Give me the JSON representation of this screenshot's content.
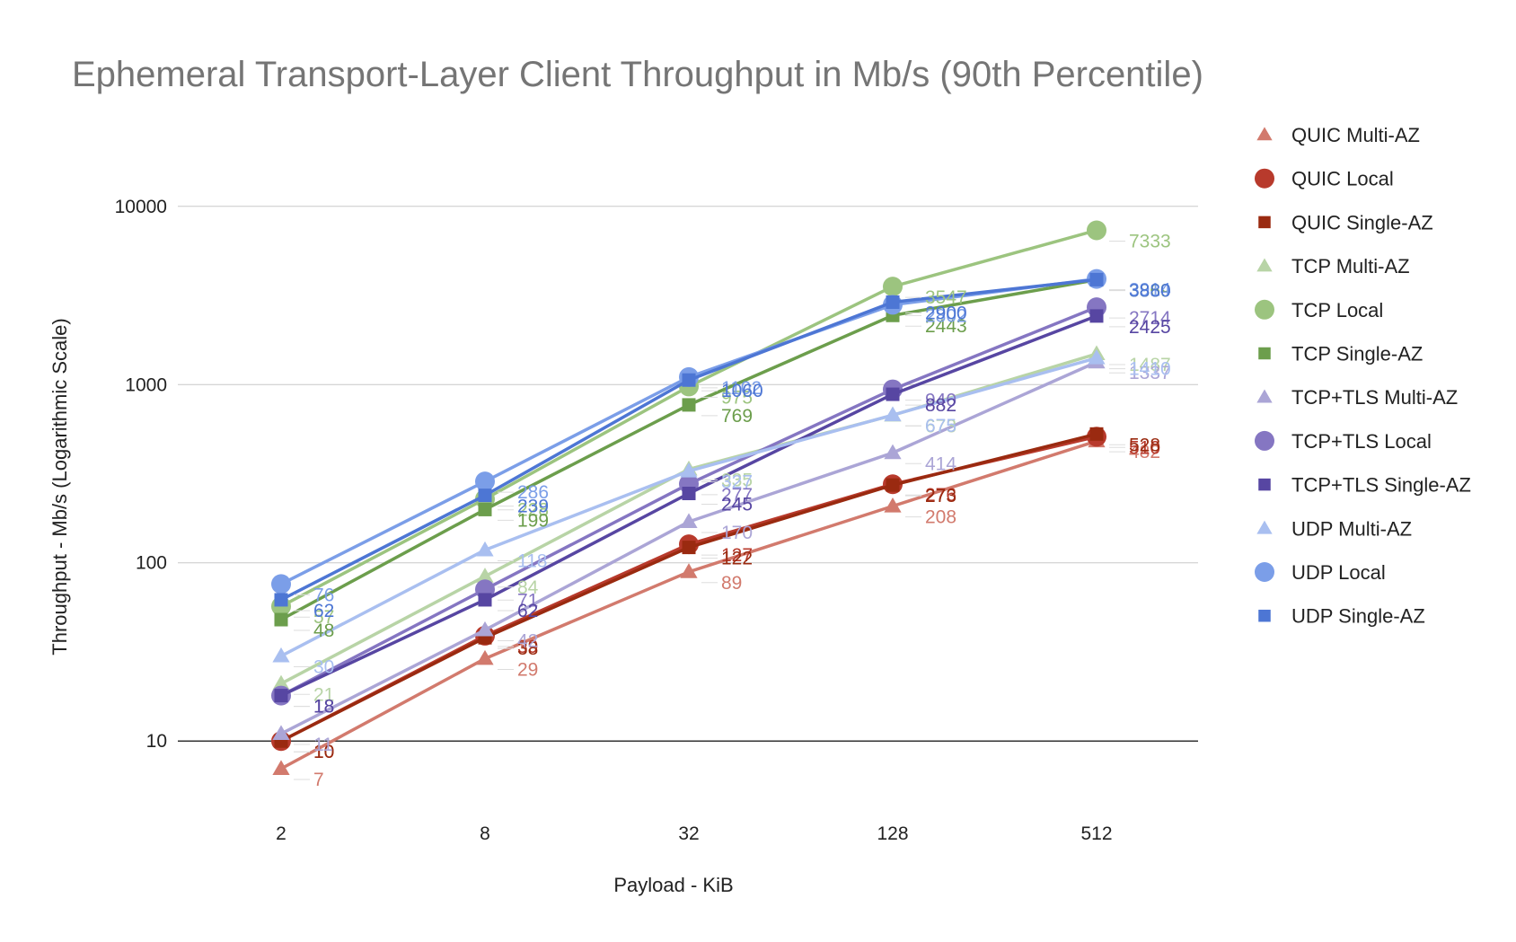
{
  "chart_data": {
    "type": "line",
    "title": "Ephemeral Transport-Layer Client Throughput in Mb/s (90th Percentile)",
    "xlabel": "Payload - KiB",
    "ylabel": "Throughput - Mb/s (Logarithmic Scale)",
    "y_scale": "log",
    "ylim": [
      5,
      20000
    ],
    "y_ticks": [
      "10",
      "100",
      "1000",
      "10000"
    ],
    "grid": true,
    "legend_position": "right",
    "categories": [
      "2",
      "8",
      "32",
      "128",
      "512"
    ],
    "series": [
      {
        "name": "QUIC Multi-AZ",
        "marker": "triangle",
        "color": "#d27a6d",
        "values": [
          7,
          29,
          89,
          208,
          482
        ],
        "labels": [
          "7",
          "29",
          "89",
          "208",
          "482"
        ]
      },
      {
        "name": "QUIC Local",
        "marker": "circle",
        "color": "#b83a2c",
        "values": [
          10,
          39,
          127,
          276,
          510
        ],
        "labels": [
          "10",
          "39",
          "127",
          "276",
          "510"
        ]
      },
      {
        "name": "QUIC Single-AZ",
        "marker": "square",
        "color": "#9a2a10",
        "values": [
          10,
          38,
          122,
          273,
          528
        ],
        "labels": [
          "10",
          "38",
          "122",
          "273",
          "528"
        ]
      },
      {
        "name": "TCP Multi-AZ",
        "marker": "triangle",
        "color": "#b8d4a6",
        "values": [
          21,
          84,
          335,
          673,
          1487
        ],
        "labels": [
          "21",
          "84",
          "335",
          "673",
          "1487"
        ]
      },
      {
        "name": "TCP Local",
        "marker": "circle",
        "color": "#9cc47f",
        "values": [
          57,
          228,
          975,
          3547,
          7333
        ],
        "labels": [
          "57",
          "228",
          "975",
          "3547",
          "7333"
        ]
      },
      {
        "name": "TCP Single-AZ",
        "marker": "square",
        "color": "#6c9e4c",
        "values": [
          48,
          199,
          769,
          2443,
          3869
        ],
        "labels": [
          "48",
          "199",
          "769",
          "2443",
          "3869"
        ]
      },
      {
        "name": "TCP+TLS Multi-AZ",
        "marker": "triangle",
        "color": "#aba5d6",
        "values": [
          11,
          42,
          170,
          414,
          1337
        ],
        "labels": [
          "11",
          "42",
          "170",
          "414",
          "1337"
        ]
      },
      {
        "name": "TCP+TLS Local",
        "marker": "circle",
        "color": "#8576c2",
        "values": [
          18,
          71,
          277,
          940,
          2714
        ],
        "labels": [
          "18",
          "71",
          "277",
          "940",
          "2714"
        ]
      },
      {
        "name": "TCP+TLS Single-AZ",
        "marker": "square",
        "color": "#5746a2",
        "values": [
          18,
          62,
          245,
          882,
          2425
        ],
        "labels": [
          "18",
          "62",
          "245",
          "882",
          "2425"
        ]
      },
      {
        "name": "UDP Multi-AZ",
        "marker": "triangle",
        "color": "#a9bff0",
        "values": [
          30,
          118,
          327,
          675,
          1410
        ],
        "labels": [
          "30",
          "118",
          "327",
          "675",
          "1410"
        ]
      },
      {
        "name": "UDP Local",
        "marker": "circle",
        "color": "#7b9ee8",
        "values": [
          76,
          286,
          1102,
          2802,
          3914
        ],
        "labels": [
          "76",
          "286",
          "1102",
          "2802",
          "3914"
        ]
      },
      {
        "name": "UDP Single-AZ",
        "marker": "square",
        "color": "#4d76d4",
        "values": [
          62,
          239,
          1060,
          2900,
          3880
        ],
        "labels": [
          "62",
          "239",
          "1060",
          "2900",
          "3880"
        ]
      }
    ]
  }
}
